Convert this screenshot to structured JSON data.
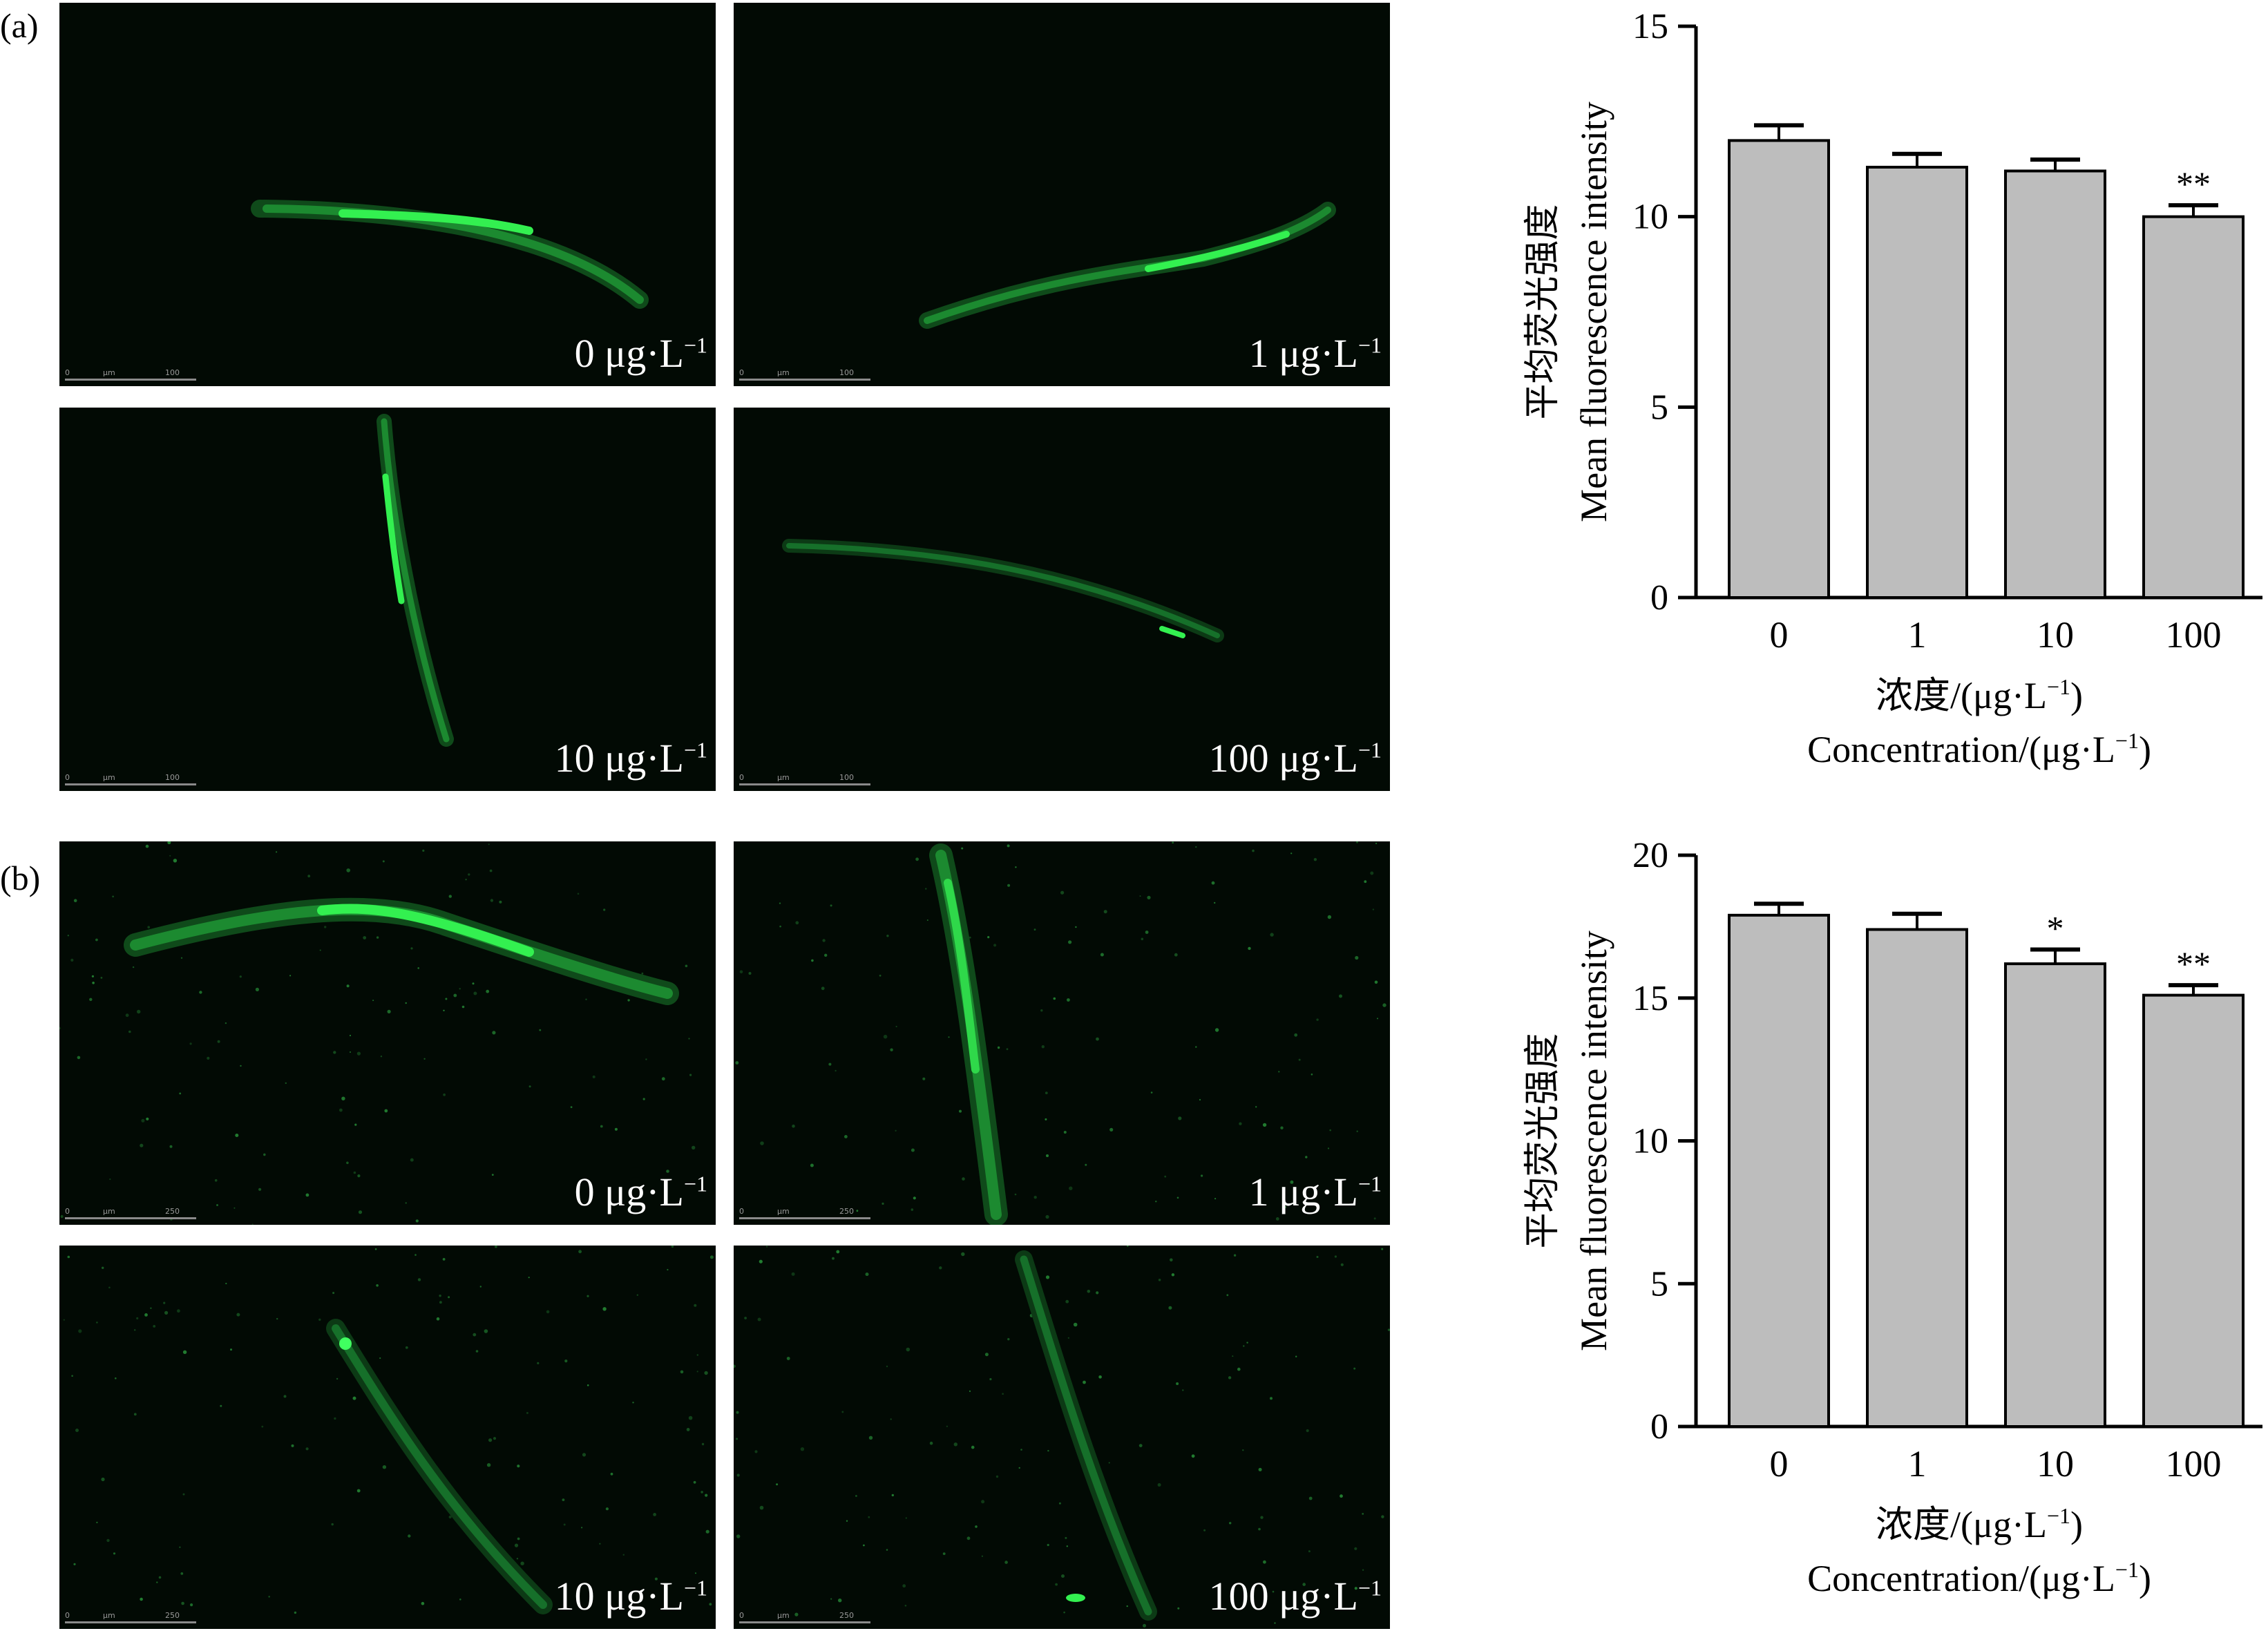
{
  "panels": [
    {
      "id": "a",
      "letter": "(a)",
      "images": [
        {
          "num": "0",
          "unit": "μg·L",
          "exp": "−1",
          "scale_labels": [
            "0",
            "μm",
            "100"
          ]
        },
        {
          "num": "1",
          "unit": "μg·L",
          "exp": "−1",
          "scale_labels": [
            "0",
            "μm",
            "100"
          ]
        },
        {
          "num": "10",
          "unit": "μg·L",
          "exp": "−1",
          "scale_labels": [
            "0",
            "μm",
            "100"
          ]
        },
        {
          "num": "100",
          "unit": "μg·L",
          "exp": "−1",
          "scale_labels": [
            "0",
            "μm",
            "100"
          ]
        }
      ]
    },
    {
      "id": "b",
      "letter": "(b)",
      "images": [
        {
          "num": "0",
          "unit": "μg·L",
          "exp": "−1",
          "scale_labels": [
            "0",
            "μm",
            "250"
          ]
        },
        {
          "num": "1",
          "unit": "μg·L",
          "exp": "−1",
          "scale_labels": [
            "0",
            "μm",
            "250"
          ]
        },
        {
          "num": "10",
          "unit": "μg·L",
          "exp": "−1",
          "scale_labels": [
            "0",
            "μm",
            "250"
          ]
        },
        {
          "num": "100",
          "unit": "μg·L",
          "exp": "−1",
          "scale_labels": [
            "0",
            "μm",
            "250"
          ]
        }
      ]
    }
  ],
  "colors": {
    "bar_fill": "#bdbdbd",
    "axis": "#000000",
    "micro_background": "#020a04",
    "fluorescence": "#2ee84a"
  },
  "chart_data": [
    {
      "type": "bar",
      "categories": [
        "0",
        "1",
        "10",
        "100"
      ],
      "values": [
        12.0,
        11.3,
        11.2,
        10.0
      ],
      "errors": [
        0.4,
        0.35,
        0.3,
        0.3
      ],
      "significance": [
        "",
        "",
        "",
        "**"
      ],
      "ylim": [
        0,
        15
      ],
      "yticks": [
        "0",
        "5",
        "10",
        "15"
      ],
      "ylabel_cn": "平均荧光强度",
      "ylabel_en": "Mean fluorescence intensity",
      "xlabel_cn": "浓度/(μg·L",
      "xlabel_en": "Concentration/(μg·L",
      "xlabel_exp": "−1",
      "xlabel_close": ")",
      "grid": false,
      "legend": "none"
    },
    {
      "type": "bar",
      "categories": [
        "0",
        "1",
        "10",
        "100"
      ],
      "values": [
        17.9,
        17.4,
        16.2,
        15.1
      ],
      "errors": [
        0.4,
        0.55,
        0.5,
        0.35
      ],
      "significance": [
        "",
        "",
        "*",
        "**"
      ],
      "ylim": [
        0,
        20
      ],
      "yticks": [
        "0",
        "5",
        "10",
        "15",
        "20"
      ],
      "ylabel_cn": "平均荧光强度",
      "ylabel_en": "Mean fluorescence intensity",
      "xlabel_cn": "浓度/(μg·L",
      "xlabel_en": "Concentration/(μg·L",
      "xlabel_exp": "−1",
      "xlabel_close": ")",
      "grid": false,
      "legend": "none"
    }
  ]
}
